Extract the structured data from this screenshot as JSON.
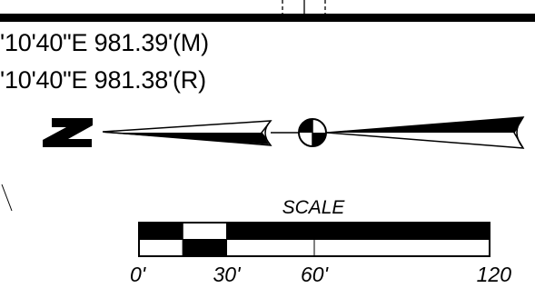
{
  "bearings": {
    "measured": "'10'40\"E 981.39'(M)",
    "record": "'10'40\"E 981.38'(R)"
  },
  "north_arrow": {
    "letter": "N"
  },
  "scale_bar": {
    "title": "SCALE",
    "tick_labels": [
      "0'",
      "30'",
      "60'",
      "120"
    ],
    "tick_values": [
      0,
      30,
      60,
      120
    ],
    "max_value": 120,
    "segments_top_filled": [
      true,
      false,
      true,
      false
    ],
    "segments_bottom_filled": [
      false,
      true,
      false,
      true
    ],
    "subdivision_values": [
      0,
      15,
      30,
      60,
      120
    ],
    "top_row_pattern": [
      true,
      false,
      true,
      true,
      false
    ],
    "bottom_row_pattern": [
      false,
      true,
      false,
      false,
      true
    ]
  },
  "colors": {
    "ink": "#000000",
    "paper": "#ffffff"
  }
}
